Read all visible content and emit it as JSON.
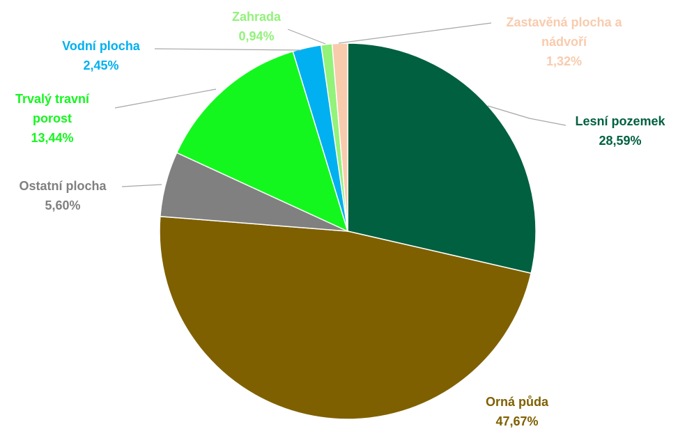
{
  "chart_data": {
    "type": "pie",
    "categories": [
      "Lesní pozemek",
      "Orná půda",
      "Ostatní plocha",
      "Trvalý travní porost",
      "Vodní plocha",
      "Zahrada",
      "Zastavěná plocha a nádvoří"
    ],
    "values": [
      28.59,
      47.67,
      5.6,
      13.44,
      2.45,
      0.94,
      1.32
    ],
    "value_labels": [
      "28,59%",
      "47,67%",
      "5,60%",
      "13,44%",
      "2,45%",
      "0,94%",
      "1,32%"
    ],
    "colors": [
      "#00603f",
      "#7f6000",
      "#808080",
      "#14f71e",
      "#00b0f0",
      "#92f27a",
      "#f8cbad"
    ]
  }
}
